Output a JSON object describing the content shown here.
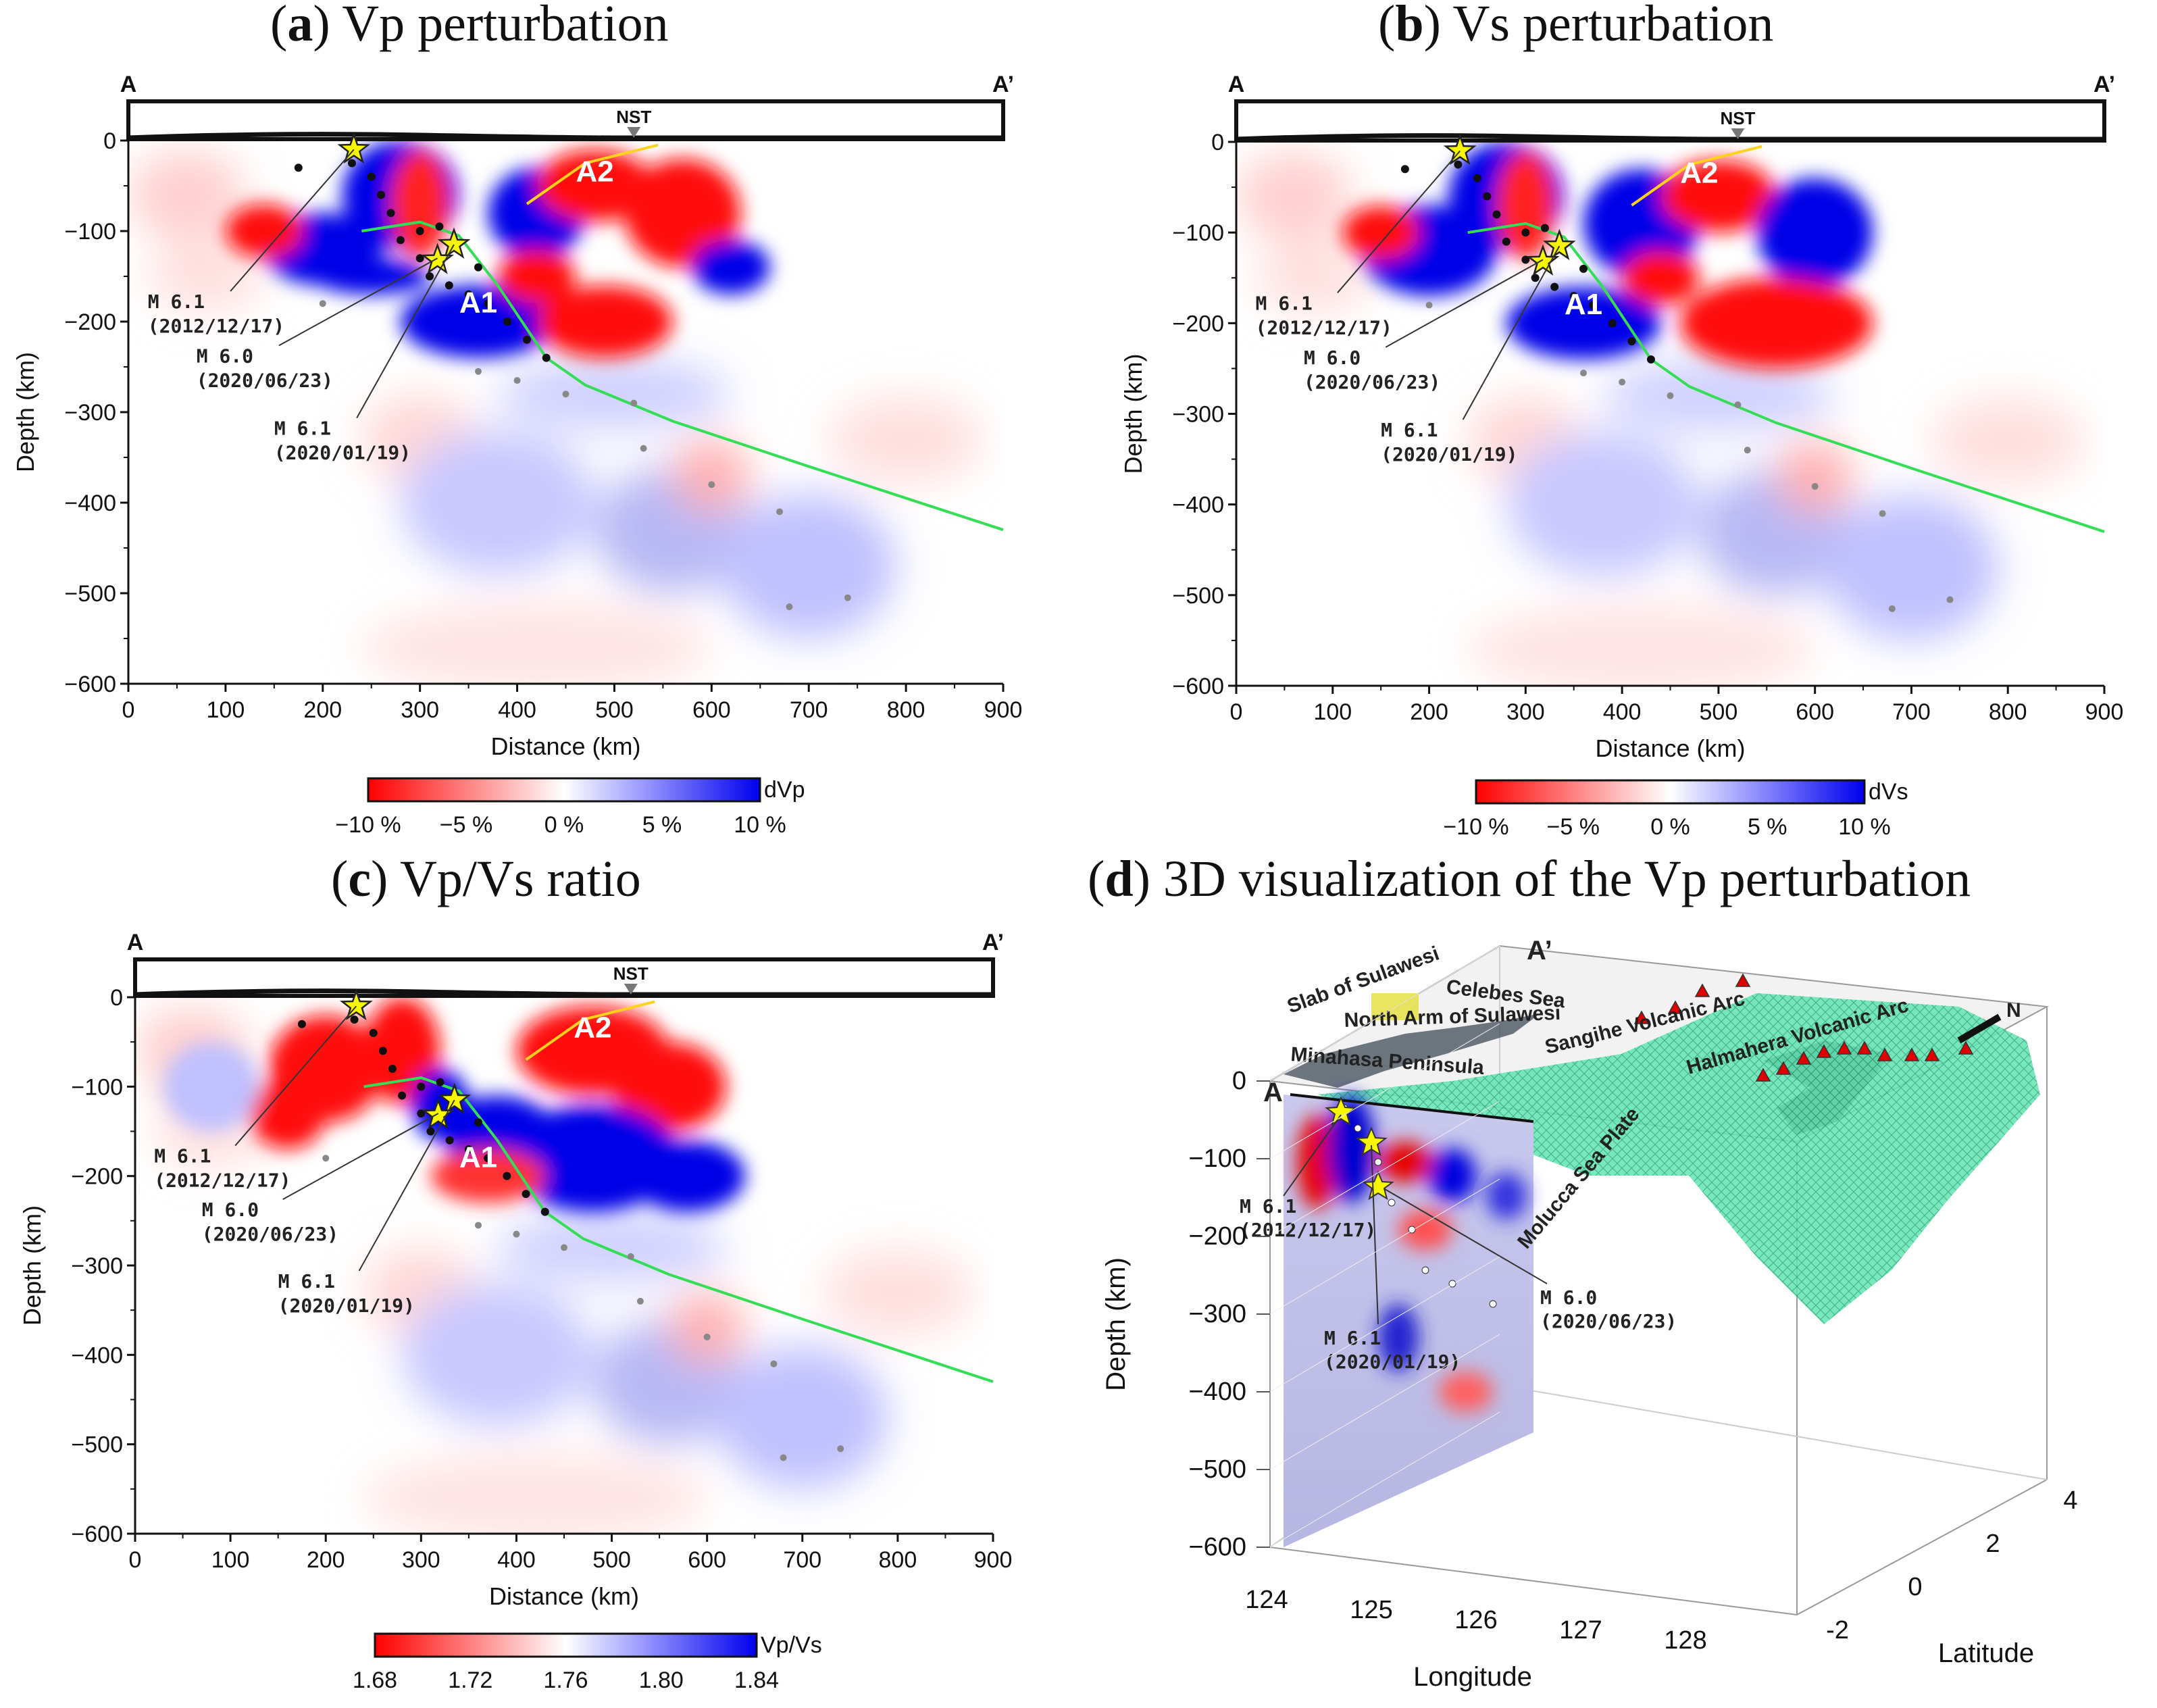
{
  "panels": {
    "a": {
      "letter": "a",
      "title": " Vp perturbation"
    },
    "b": {
      "letter": "b",
      "title": " Vs perturbation"
    },
    "c": {
      "letter": "c",
      "title": " Vp/Vs ratio"
    },
    "d": {
      "letter": "d",
      "title": " 3D visualization of the Vp perturbation"
    }
  },
  "common": {
    "profile_start": "A",
    "profile_end": "A’",
    "station": "NST",
    "xlabel": "Distance (km)",
    "ylabel": "Depth (km)",
    "region_a1": "A1",
    "region_a2": "A2",
    "events": [
      {
        "mag": "M 6.1",
        "date": "(2012/12/17)"
      },
      {
        "mag": "M 6.0",
        "date": "(2020/06/23)"
      },
      {
        "mag": "M 6.1",
        "date": "(2020/01/19)"
      }
    ]
  },
  "colorbars": {
    "a": {
      "label": "dVp",
      "ticks": [
        "−10 %",
        "−5 %",
        "0 %",
        "5 %",
        "10 %"
      ]
    },
    "b": {
      "label": "dVs",
      "ticks": [
        "−10 %",
        "−5 %",
        "0 %",
        "5 %",
        "10 %"
      ]
    },
    "c": {
      "label": "Vp/Vs",
      "ticks": [
        "1.68",
        "1.72",
        "1.76",
        "1.80",
        "1.84"
      ]
    }
  },
  "panel_d": {
    "xlabel": "Longitude",
    "ylabel": "Depth (km)",
    "zlabel": "Latitude",
    "lon_ticks": [
      "124",
      "125",
      "126",
      "127",
      "128"
    ],
    "lat_ticks": [
      "-2",
      "0",
      "2",
      "4"
    ],
    "depth_ticks": [
      "0",
      "−100",
      "−200",
      "−300",
      "−400",
      "−500",
      "−600"
    ],
    "labels": {
      "slab": "Slab of Sulawesi",
      "celebes": "Celebes Sea",
      "north_arm": "North Arm of Sulawesi",
      "minahasa": "Minahasa Peninsula",
      "sangihe": "Sangihe Volcanic Arc",
      "halmahera": "Halmahera Volcanic Arc",
      "molucca": "Molucca Sea Plate",
      "north": "N",
      "a_start": "A",
      "a_end": "A’"
    },
    "events": [
      {
        "mag": "M 6.1",
        "date": "(2012/12/17)"
      },
      {
        "mag": "M 6.1",
        "date": "(2020/01/19)"
      },
      {
        "mag": "M 6.0",
        "date": "(2020/06/23)"
      }
    ]
  },
  "chart_data": [
    {
      "type": "heatmap",
      "id": "a",
      "title": "Vp perturbation",
      "xlabel": "Distance (km)",
      "ylabel": "Depth (km)",
      "xlim": [
        0,
        900
      ],
      "ylim": [
        -600,
        0
      ],
      "xticks": [
        0,
        100,
        200,
        300,
        400,
        500,
        600,
        700,
        800,
        900
      ],
      "yticks": [
        0,
        -100,
        -200,
        -300,
        -400,
        -500,
        -600
      ],
      "colorbar": {
        "label": "dVp",
        "range": [
          -10,
          10
        ],
        "unit": "%"
      },
      "slab_top": [
        [
          240,
          -100
        ],
        [
          300,
          -90
        ],
        [
          340,
          -105
        ],
        [
          380,
          -160
        ],
        [
          430,
          -240
        ],
        [
          470,
          -270
        ],
        [
          560,
          -310
        ],
        [
          700,
          -360
        ],
        [
          900,
          -430
        ]
      ],
      "stars": [
        [
          232,
          -10
        ],
        [
          335,
          -115
        ],
        [
          318,
          -132
        ]
      ],
      "station_x": 520
    },
    {
      "type": "heatmap",
      "id": "b",
      "title": "Vs perturbation",
      "xlabel": "Distance (km)",
      "ylabel": "Depth (km)",
      "xlim": [
        0,
        900
      ],
      "ylim": [
        -600,
        0
      ],
      "xticks": [
        0,
        100,
        200,
        300,
        400,
        500,
        600,
        700,
        800,
        900
      ],
      "yticks": [
        0,
        -100,
        -200,
        -300,
        -400,
        -500,
        -600
      ],
      "colorbar": {
        "label": "dVs",
        "range": [
          -10,
          10
        ],
        "unit": "%"
      },
      "slab_top": [
        [
          240,
          -100
        ],
        [
          300,
          -90
        ],
        [
          340,
          -105
        ],
        [
          380,
          -160
        ],
        [
          430,
          -240
        ],
        [
          470,
          -270
        ],
        [
          560,
          -310
        ],
        [
          700,
          -360
        ],
        [
          900,
          -430
        ]
      ],
      "stars": [
        [
          232,
          -10
        ],
        [
          335,
          -115
        ],
        [
          318,
          -132
        ]
      ],
      "station_x": 520
    },
    {
      "type": "heatmap",
      "id": "c",
      "title": "Vp/Vs ratio",
      "xlabel": "Distance (km)",
      "ylabel": "Depth (km)",
      "xlim": [
        0,
        900
      ],
      "ylim": [
        -600,
        0
      ],
      "xticks": [
        0,
        100,
        200,
        300,
        400,
        500,
        600,
        700,
        800,
        900
      ],
      "yticks": [
        0,
        -100,
        -200,
        -300,
        -400,
        -500,
        -600
      ],
      "colorbar": {
        "label": "Vp/Vs",
        "range": [
          1.68,
          1.84
        ]
      },
      "slab_top": [
        [
          240,
          -100
        ],
        [
          300,
          -90
        ],
        [
          340,
          -105
        ],
        [
          380,
          -160
        ],
        [
          430,
          -240
        ],
        [
          470,
          -270
        ],
        [
          560,
          -310
        ],
        [
          700,
          -360
        ],
        [
          900,
          -430
        ]
      ],
      "stars": [
        [
          232,
          -10
        ],
        [
          335,
          -115
        ],
        [
          318,
          -132
        ]
      ],
      "station_x": 520
    },
    {
      "type": "surface",
      "id": "d",
      "title": "3D visualization of the Vp perturbation",
      "xlabel": "Longitude",
      "ylabel": "Depth (km)",
      "zlabel": "Latitude",
      "xlim": [
        123.5,
        128.5
      ],
      "ylim": [
        -600,
        0
      ],
      "zlim": [
        -2,
        4
      ]
    }
  ]
}
